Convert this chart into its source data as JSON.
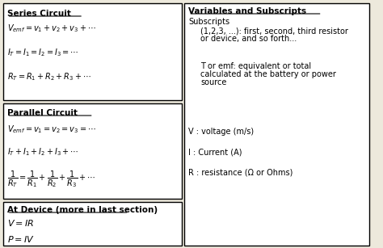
{
  "bg_color": "#ede9dc",
  "box_color": "#ffffff",
  "border_color": "#000000",
  "text_color": "#000000",
  "series_title": "Series Circuit",
  "series_eqs": [
    "$V_{emf} = v_1 + v_2 + v_3 + \\cdots$",
    "$I_T = I_1 = I_2 = I_3 = \\cdots$",
    "$R_T = R_1 + R_2 + R_3 + \\cdots$"
  ],
  "parallel_title": "Parallel Circuit",
  "parallel_eqs": [
    "$V_{emf} = v_1 = v_2 = v_3 = \\cdots$",
    "$I_T + I_1 + I_2 + I_3 + \\cdots$",
    "$\\dfrac{1}{R_T} = \\dfrac{1}{R_1} + \\dfrac{1}{R_2} + \\dfrac{1}{R_3} + \\cdots$"
  ],
  "device_title": "At Device (more in last section)",
  "device_eqs": [
    "$V = IR$",
    "$P = IV$"
  ],
  "vars_title": "Variables and Subscripts",
  "subscripts_label": "Subscripts",
  "subscripts_text1": "(1,2,3, ...): first, second, third resistor",
  "subscripts_text2": "or device, and so forth...",
  "temf_text1": "T or emf: equivalent or total",
  "temf_text2": "calculated at the battery or power",
  "temf_text3": "source",
  "v_text": "V : voltage (m/s)",
  "i_text": "I : Current (A)",
  "r_text": "R : resistance (Ω or Ohms)"
}
